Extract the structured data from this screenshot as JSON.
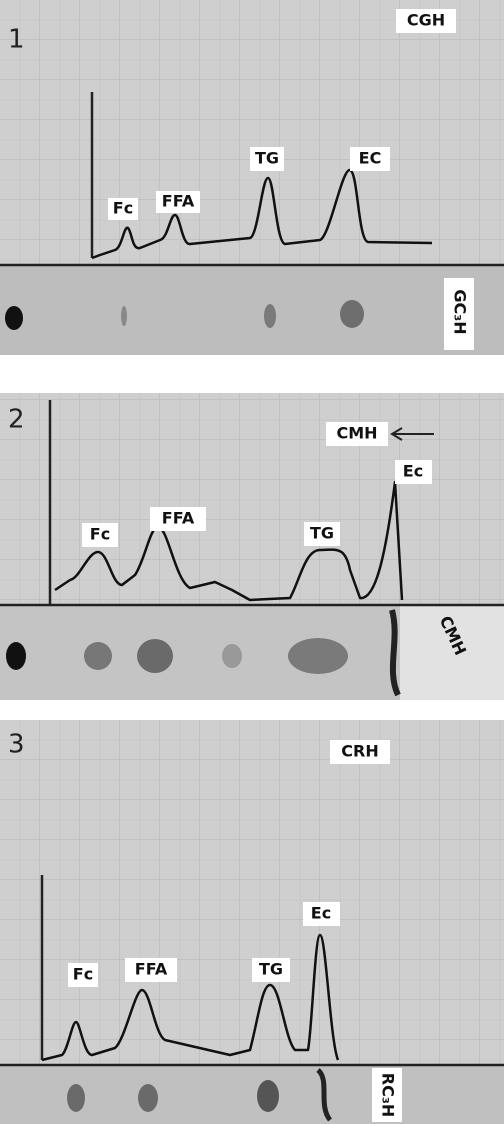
{
  "panels": [
    {
      "number": "1",
      "sample": "CGH",
      "peaks": [
        "Fc",
        "FFA",
        "TG",
        "EC"
      ],
      "plate_label": "GC₃H"
    },
    {
      "number": "2",
      "sample": "CMH",
      "peaks": [
        "Fc",
        "FFA",
        "TG",
        "Ec"
      ],
      "plate_label": "CMH"
    },
    {
      "number": "3",
      "sample": "CRH",
      "peaks": [
        "Fc",
        "FFA",
        "TG",
        "Ec"
      ],
      "plate_label": "RC₃H"
    }
  ]
}
